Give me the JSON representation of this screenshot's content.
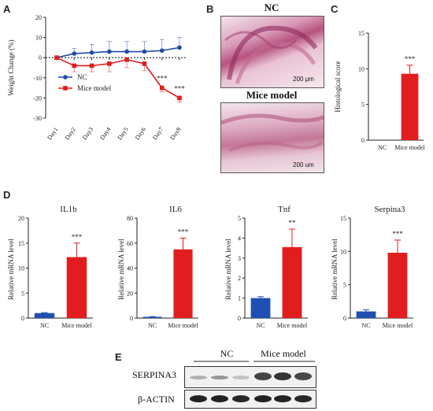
{
  "panels": {
    "a": "A",
    "b": "B",
    "c": "C",
    "d": "D",
    "e": "E"
  },
  "colors": {
    "nc": "#1f4aa8",
    "model": "#e31a1c",
    "model_bar": "#e21d1f",
    "nc_bar": "#1f4fb3",
    "axis": "#222222"
  },
  "panel_a": {
    "ylabel": "Weight Change (%)",
    "legend": [
      "NC",
      "Mice model"
    ],
    "sig_labels": [
      "***",
      "***"
    ]
  },
  "panel_b": {
    "top_title": "NC",
    "bottom_title": "Mice model",
    "scale_top": "200 μm",
    "scale_bottom": "200 um"
  },
  "panel_c": {
    "ylabel": "Histological score",
    "sig": "***"
  },
  "panel_d": {
    "ylabel": "Relative mRNA level"
  },
  "panel_e": {
    "group_nc": "NC",
    "group_model": "Mice model",
    "row1": "SERPINA3",
    "row2": "β-ACTIN"
  },
  "chart_data": [
    {
      "id": "A",
      "type": "line",
      "ylabel": "Weight Change (%)",
      "x": [
        "Day1",
        "Day2",
        "Day3",
        "Day4",
        "Day5",
        "Day6",
        "Day7",
        "Day8"
      ],
      "ylim": [
        -30,
        20
      ],
      "yticks": [
        -30,
        -20,
        -10,
        0,
        10,
        20
      ],
      "series": [
        {
          "name": "NC",
          "values": [
            0,
            2,
            2.5,
            3,
            3,
            3,
            3.5,
            5
          ],
          "error": [
            0,
            2.5,
            4,
            5,
            5,
            5,
            5.5,
            5
          ]
        },
        {
          "name": "Mice model",
          "values": [
            0,
            -4,
            -4,
            -3,
            -1,
            -3,
            -15,
            -20
          ],
          "error": [
            0,
            3,
            3,
            4,
            4,
            3.5,
            2,
            2
          ]
        }
      ],
      "significance": [
        {
          "x": "Day7",
          "label": "***"
        },
        {
          "x": "Day8",
          "label": "***"
        }
      ]
    },
    {
      "id": "C",
      "type": "bar",
      "ylabel": "Histological score",
      "categories": [
        "NC",
        "Mice model"
      ],
      "values": [
        0,
        9.3
      ],
      "error": [
        0,
        1.2
      ],
      "ylim": [
        0,
        15
      ],
      "yticks": [
        0,
        5,
        10,
        15
      ],
      "significance": "***"
    },
    {
      "id": "D1",
      "type": "bar",
      "title": "IL1b",
      "ylabel": "Relative mRNA level",
      "categories": [
        "NC",
        "Mice model"
      ],
      "values": [
        1,
        12.2
      ],
      "error": [
        0.1,
        2.8
      ],
      "ylim": [
        0,
        20
      ],
      "yticks": [
        0,
        5,
        10,
        15,
        20
      ],
      "significance": "***"
    },
    {
      "id": "D2",
      "type": "bar",
      "title": "IL6",
      "ylabel": "Relative mRNA level",
      "categories": [
        "NC",
        "Mice model"
      ],
      "values": [
        1,
        55
      ],
      "error": [
        0.2,
        9
      ],
      "ylim": [
        0,
        80
      ],
      "yticks": [
        0,
        20,
        40,
        60,
        80
      ],
      "significance": "***"
    },
    {
      "id": "D3",
      "type": "bar",
      "title": "Tnf",
      "ylabel": "Relative mRNA level",
      "categories": [
        "NC",
        "Mice model"
      ],
      "values": [
        1,
        3.55
      ],
      "error": [
        0.07,
        0.9
      ],
      "ylim": [
        0,
        5
      ],
      "yticks": [
        0,
        1,
        2,
        3,
        4,
        5
      ],
      "significance": "**"
    },
    {
      "id": "D4",
      "type": "bar",
      "title": "Serpina3",
      "ylabel": "Relative mRNA level",
      "categories": [
        "NC",
        "Mice model"
      ],
      "values": [
        1,
        9.8
      ],
      "error": [
        0.25,
        1.9
      ],
      "ylim": [
        0,
        15
      ],
      "yticks": [
        0,
        5,
        10,
        15
      ],
      "significance": "***"
    }
  ]
}
